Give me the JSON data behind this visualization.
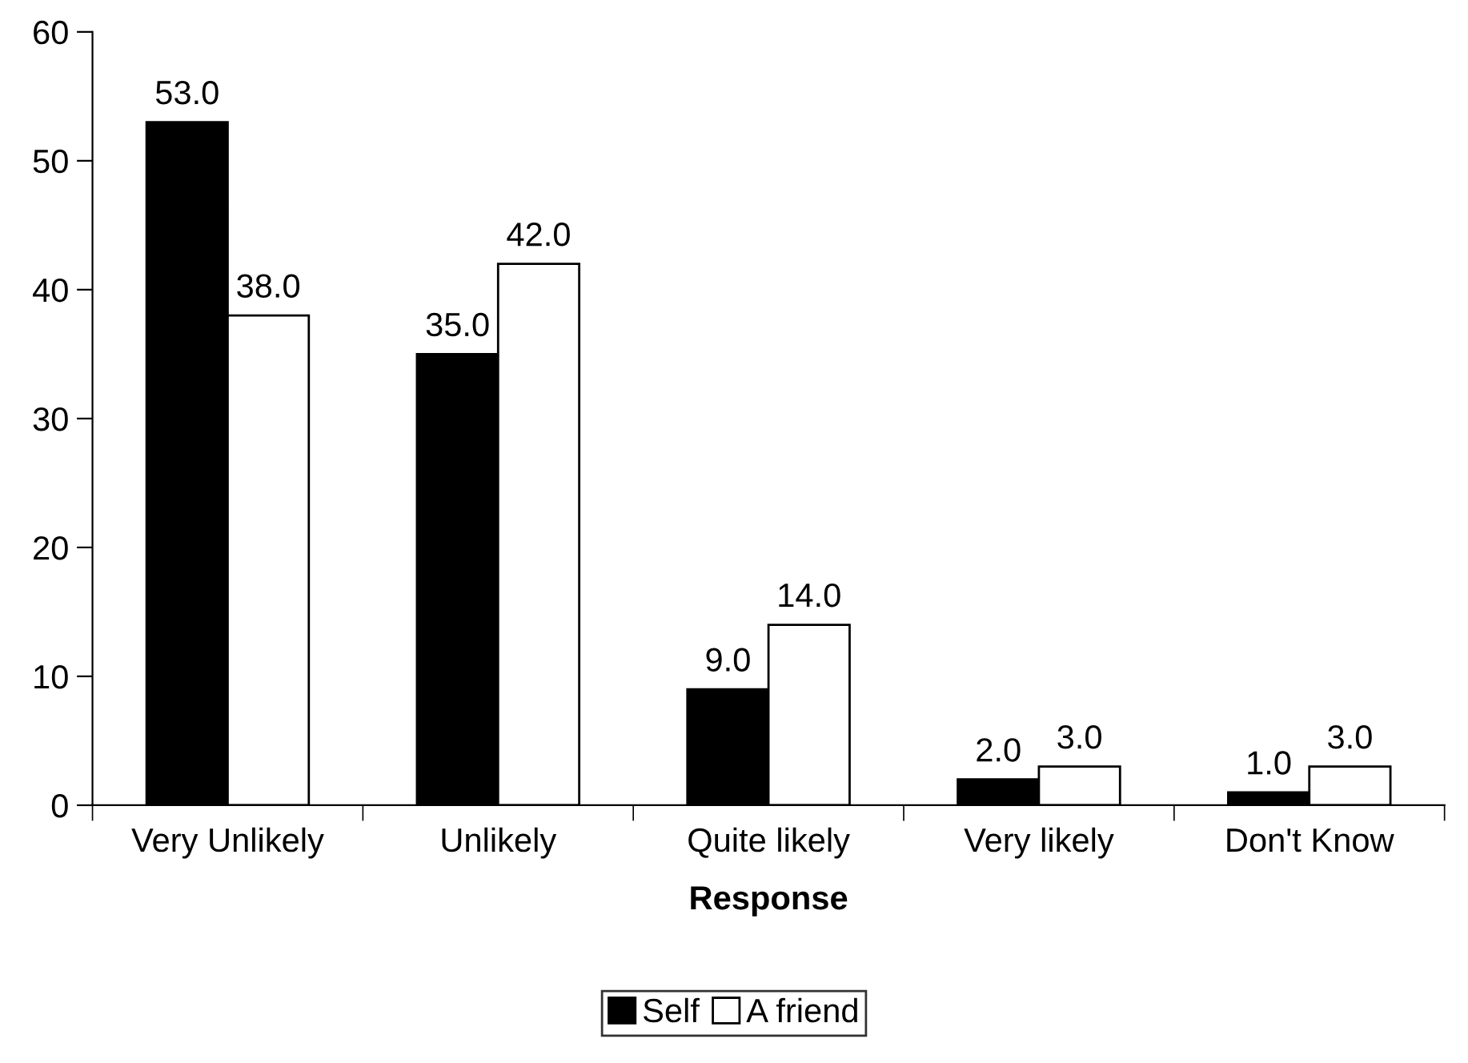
{
  "chart_data": {
    "type": "bar",
    "xlabel": "Response",
    "categories": [
      "Very Unlikely",
      "Unlikely",
      "Quite likely",
      "Very likely",
      "Don't Know"
    ],
    "series": [
      {
        "name": "Self",
        "color": "#000000",
        "values": [
          53,
          35,
          9,
          2,
          1
        ],
        "value_labels": [
          "53.0",
          "35.0",
          "9.0",
          "2.0",
          "1.0"
        ]
      },
      {
        "name": "A friend",
        "color": "#ffffff",
        "values": [
          38,
          42,
          14,
          3,
          3
        ],
        "value_labels": [
          "38.0",
          "42.0",
          "14.0",
          "3.0",
          "3.0"
        ]
      }
    ],
    "ylim": [
      0,
      60
    ],
    "yticks": [
      0,
      10,
      20,
      30,
      40,
      50,
      60
    ],
    "grid": false,
    "legend": "bottom"
  }
}
